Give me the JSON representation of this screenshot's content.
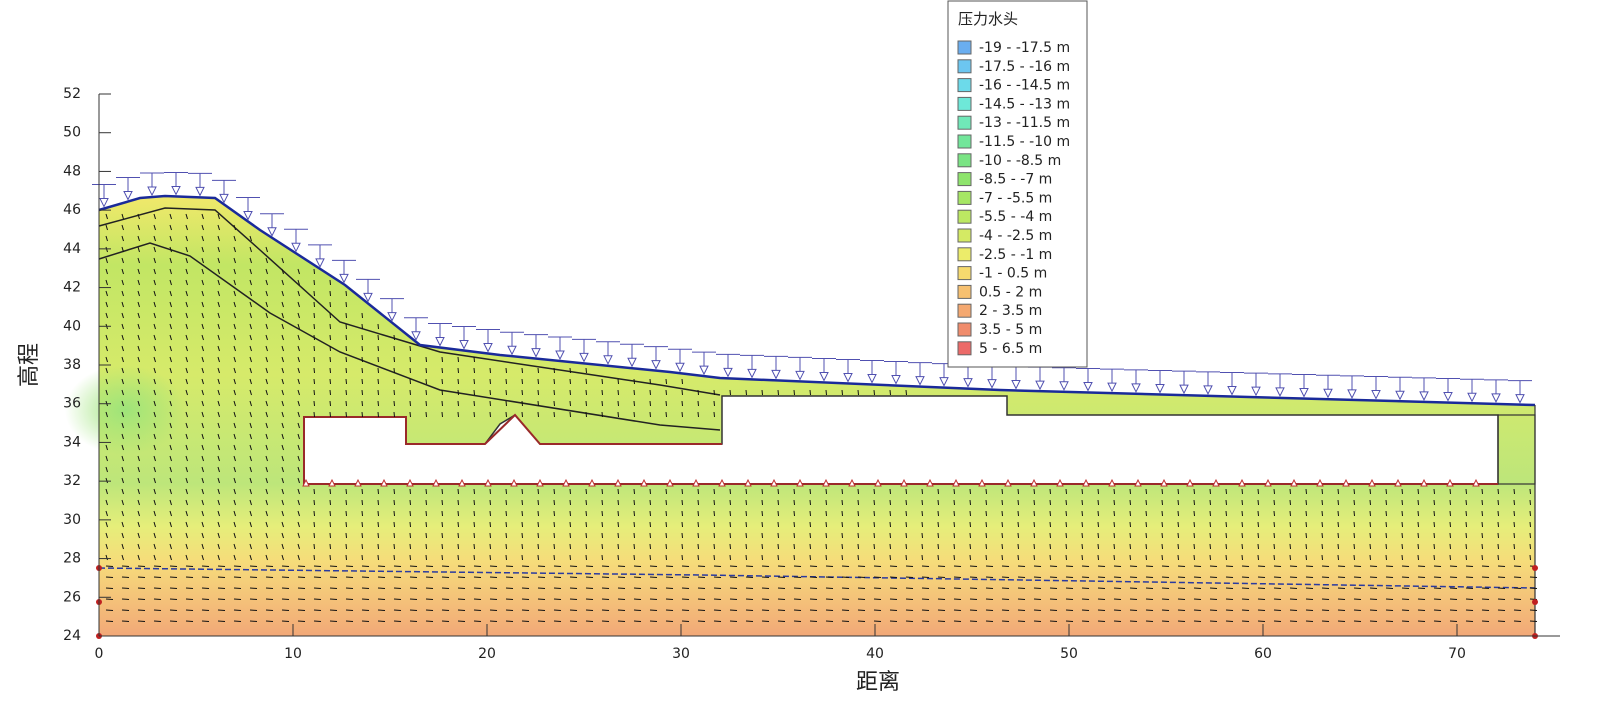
{
  "chart_data": {
    "type": "contour",
    "xlabel": "距离",
    "ylabel": "高程",
    "xlim": [
      0,
      75
    ],
    "ylim": [
      24,
      52
    ],
    "xticks": [
      0,
      10,
      20,
      30,
      40,
      50,
      60,
      70
    ],
    "yticks": [
      24,
      26,
      28,
      30,
      32,
      34,
      36,
      38,
      40,
      42,
      44,
      46,
      48,
      50,
      52
    ],
    "legend": {
      "title": "压力水头",
      "position": "upper center",
      "items": [
        {
          "label": "-19 - -17.5 m",
          "color": "#6aaef0"
        },
        {
          "label": "-17.5 - -16 m",
          "color": "#6cc6f0"
        },
        {
          "label": "-16 - -14.5 m",
          "color": "#6cdaea"
        },
        {
          "label": "-14.5 - -13 m",
          "color": "#6ee8d8"
        },
        {
          "label": "-13 - -11.5 m",
          "color": "#70e8b8"
        },
        {
          "label": "-11.5 - -10 m",
          "color": "#72e69a"
        },
        {
          "label": "-10 - -8.5 m",
          "color": "#7ae484"
        },
        {
          "label": "-8.5 - -7 m",
          "color": "#8ee46c"
        },
        {
          "label": "-7 - -5.5 m",
          "color": "#a6e664"
        },
        {
          "label": "-5.5 - -4 m",
          "color": "#bce862"
        },
        {
          "label": "-4 - -2.5 m",
          "color": "#d4ea64"
        },
        {
          "label": "-2.5 - -1 m",
          "color": "#ecec6a"
        },
        {
          "label": "-1 - 0.5 m",
          "color": "#f6da6e"
        },
        {
          "label": "0.5 - 2 m",
          "color": "#f6c070"
        },
        {
          "label": "2 - 3.5 m",
          "color": "#f4a870"
        },
        {
          "label": "3.5 - 5 m",
          "color": "#f08c6c"
        },
        {
          "label": "5 - 6.5 m",
          "color": "#ec6a68"
        }
      ]
    }
  }
}
